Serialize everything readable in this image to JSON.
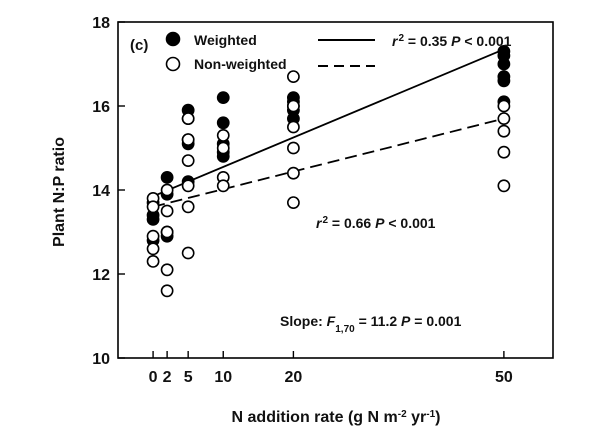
{
  "chart_data": {
    "type": "scatter",
    "panel_label": "(c)",
    "xlabel": "N addition rate (g N m",
    "xlabel_sup1": "-2",
    "xlabel_mid": " yr",
    "xlabel_sup2": "-1",
    "xlabel_end": ")",
    "ylabel": "Plant N:P ratio",
    "xlim": [
      -5,
      57
    ],
    "ylim": [
      10,
      18
    ],
    "x_ticks": [
      0,
      2,
      5,
      10,
      20,
      50
    ],
    "y_ticks": [
      10,
      12,
      14,
      16,
      18
    ],
    "legend_position": "top-left",
    "series": [
      {
        "name": "Weighted",
        "marker": "filled-circle",
        "points": [
          {
            "x": 0,
            "y": 13.3
          },
          {
            "x": 0,
            "y": 13.4
          },
          {
            "x": 0,
            "y": 12.8
          },
          {
            "x": 0,
            "y": 13.7
          },
          {
            "x": 2,
            "y": 14.3
          },
          {
            "x": 2,
            "y": 13.9
          },
          {
            "x": 2,
            "y": 13.0
          },
          {
            "x": 2,
            "y": 12.9
          },
          {
            "x": 5,
            "y": 15.9
          },
          {
            "x": 5,
            "y": 15.7
          },
          {
            "x": 5,
            "y": 15.2
          },
          {
            "x": 5,
            "y": 15.1
          },
          {
            "x": 5,
            "y": 14.2
          },
          {
            "x": 10,
            "y": 16.2
          },
          {
            "x": 10,
            "y": 15.6
          },
          {
            "x": 10,
            "y": 15.1
          },
          {
            "x": 10,
            "y": 14.9
          },
          {
            "x": 10,
            "y": 14.8
          },
          {
            "x": 20,
            "y": 16.2
          },
          {
            "x": 20,
            "y": 16.1
          },
          {
            "x": 20,
            "y": 16.0
          },
          {
            "x": 20,
            "y": 15.9
          },
          {
            "x": 20,
            "y": 15.7
          },
          {
            "x": 50,
            "y": 17.3
          },
          {
            "x": 50,
            "y": 17.2
          },
          {
            "x": 50,
            "y": 17.0
          },
          {
            "x": 50,
            "y": 16.7
          },
          {
            "x": 50,
            "y": 16.6
          },
          {
            "x": 50,
            "y": 16.1
          }
        ]
      },
      {
        "name": "Non-weighted",
        "marker": "open-circle",
        "points": [
          {
            "x": 0,
            "y": 13.8
          },
          {
            "x": 0,
            "y": 13.6
          },
          {
            "x": 0,
            "y": 12.9
          },
          {
            "x": 0,
            "y": 12.6
          },
          {
            "x": 0,
            "y": 12.3
          },
          {
            "x": 2,
            "y": 14.0
          },
          {
            "x": 2,
            "y": 13.5
          },
          {
            "x": 2,
            "y": 13.0
          },
          {
            "x": 2,
            "y": 12.1
          },
          {
            "x": 2,
            "y": 11.6
          },
          {
            "x": 5,
            "y": 15.7
          },
          {
            "x": 5,
            "y": 15.2
          },
          {
            "x": 5,
            "y": 14.7
          },
          {
            "x": 5,
            "y": 14.1
          },
          {
            "x": 5,
            "y": 13.6
          },
          {
            "x": 5,
            "y": 12.5
          },
          {
            "x": 10,
            "y": 15.3
          },
          {
            "x": 10,
            "y": 15.0
          },
          {
            "x": 10,
            "y": 14.3
          },
          {
            "x": 10,
            "y": 14.1
          },
          {
            "x": 20,
            "y": 16.7
          },
          {
            "x": 20,
            "y": 16.0
          },
          {
            "x": 20,
            "y": 15.5
          },
          {
            "x": 20,
            "y": 15.0
          },
          {
            "x": 20,
            "y": 14.4
          },
          {
            "x": 20,
            "y": 13.7
          },
          {
            "x": 50,
            "y": 16.0
          },
          {
            "x": 50,
            "y": 15.7
          },
          {
            "x": 50,
            "y": 15.4
          },
          {
            "x": 50,
            "y": 14.9
          },
          {
            "x": 50,
            "y": 14.1
          }
        ]
      }
    ],
    "fit_lines": [
      {
        "series": "Weighted",
        "style": "solid",
        "x": [
          0,
          50
        ],
        "y": [
          13.85,
          17.35
        ],
        "r2_label": "r",
        "r2_value": " = 0.35 ",
        "p_label": "P",
        "p_value": " < 0.001"
      },
      {
        "series": "Non-weighted",
        "style": "dashed",
        "x": [
          0,
          50
        ],
        "y": [
          13.6,
          15.7
        ],
        "r2_label": "r",
        "r2_value": " = 0.66 ",
        "p_label": "P",
        "p_value": " < 0.001"
      }
    ],
    "slope_annotation": {
      "prefix": "Slope: ",
      "f_label": "F",
      "f_sub": "1,70",
      "f_value": " = 11.2 ",
      "p_label": "P",
      "p_value": " = 0.001"
    }
  }
}
